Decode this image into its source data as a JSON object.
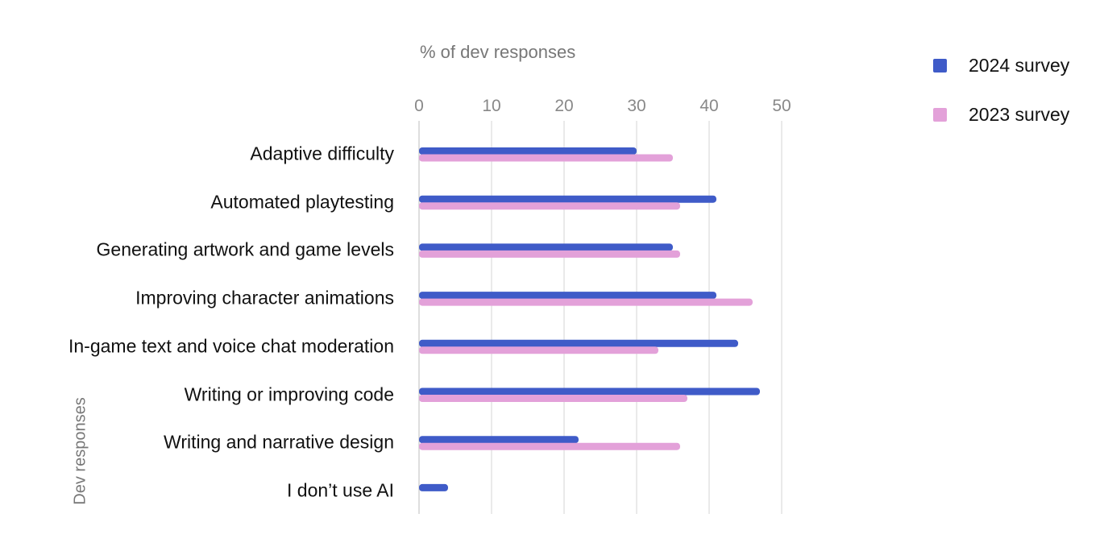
{
  "chart_data": {
    "type": "bar",
    "orientation": "horizontal",
    "xlabel": "% of dev responses",
    "ylabel": "Dev responses",
    "xlim": [
      0,
      50
    ],
    "xticks": [
      0,
      10,
      20,
      30,
      40,
      50
    ],
    "grid": true,
    "legend_position": "top-right",
    "categories": [
      "Adaptive difficulty",
      "Automated playtesting",
      "Generating artwork and game levels",
      "Improving character animations",
      "In-game text and voice chat moderation",
      "Writing or improving code",
      "Writing and narrative design",
      "I don’t use AI"
    ],
    "series": [
      {
        "name": "2024 survey",
        "color": "#3f5bc8",
        "values": [
          30,
          41,
          35,
          41,
          44,
          47,
          22,
          4
        ]
      },
      {
        "name": "2023 survey",
        "color": "#e3a1d9",
        "values": [
          35,
          36,
          36,
          46,
          33,
          37,
          36,
          null
        ]
      }
    ]
  }
}
